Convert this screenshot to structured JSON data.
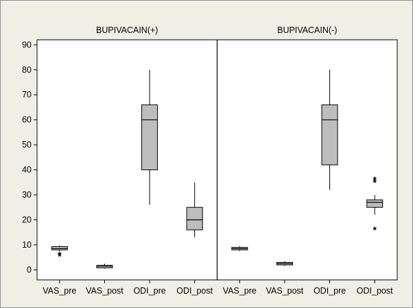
{
  "chart_data": {
    "type": "boxplot",
    "y_ticks": [
      0,
      10,
      20,
      30,
      40,
      50,
      60,
      70,
      80,
      90
    ],
    "ylim": [
      -4,
      92
    ],
    "grid": false,
    "colors": {
      "background": "#f0efe6",
      "box_fill": "#bdbdbd",
      "stroke": "#000000"
    },
    "panels": [
      {
        "title": "BUPIVACAIN(+)",
        "categories": [
          "VAS_pre",
          "VAS_post",
          "ODI_pre",
          "ODI_post"
        ],
        "boxes": [
          {
            "category": "VAS_pre",
            "whisker_low": 7.5,
            "q1": 8,
            "median": 8.5,
            "q3": 9.3,
            "whisker_high": 9.8,
            "outliers": [
              6,
              5.5
            ]
          },
          {
            "category": "VAS_post",
            "whisker_low": 0.5,
            "q1": 0.8,
            "median": 1.5,
            "q3": 1.8,
            "whisker_high": 2.5,
            "outliers": []
          },
          {
            "category": "ODI_pre",
            "whisker_low": 26,
            "q1": 40,
            "median": 60,
            "q3": 66,
            "whisker_high": 80,
            "outliers": []
          },
          {
            "category": "ODI_post",
            "whisker_low": 13,
            "q1": 16,
            "median": 20,
            "q3": 25,
            "whisker_high": 35,
            "outliers": []
          }
        ]
      },
      {
        "title": "BUPIVACAIN(-)",
        "categories": [
          "VAS_pre",
          "VAS_post",
          "ODI_pre",
          "ODI_post"
        ],
        "boxes": [
          {
            "category": "VAS_pre",
            "whisker_low": 7.5,
            "q1": 8,
            "median": 8.5,
            "q3": 9,
            "whisker_high": 9.5,
            "outliers": []
          },
          {
            "category": "VAS_post",
            "whisker_low": 1.5,
            "q1": 2,
            "median": 2.5,
            "q3": 3,
            "whisker_high": 3.5,
            "outliers": []
          },
          {
            "category": "ODI_pre",
            "whisker_low": 32,
            "q1": 42,
            "median": 60,
            "q3": 66,
            "whisker_high": 80,
            "outliers": []
          },
          {
            "category": "ODI_post",
            "whisker_low": 22,
            "q1": 25,
            "median": 27,
            "q3": 28,
            "whisker_high": 30,
            "outliers": [
              35,
              36,
              16
            ]
          }
        ]
      }
    ]
  }
}
